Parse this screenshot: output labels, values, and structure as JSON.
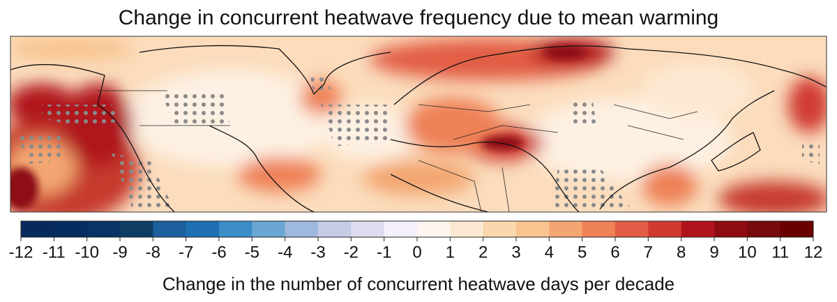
{
  "title": "Change in concurrent heatwave frequency due to mean warming",
  "colorbar": {
    "label": "Change in the number of concurrent heatwave days per decade",
    "ticks": [
      -12,
      -11,
      -10,
      -9,
      -8,
      -7,
      -6,
      -5,
      -4,
      -3,
      -2,
      -1,
      0,
      1,
      2,
      3,
      4,
      5,
      6,
      7,
      8,
      9,
      10,
      11,
      12
    ],
    "colors": [
      "#062a5a",
      "#062d60",
      "#073366",
      "#0d3d63",
      "#1b5f9c",
      "#1f6fb3",
      "#3b8dc6",
      "#6aa6d4",
      "#9fb8de",
      "#c6cbe6",
      "#e0dcef",
      "#f4eff8",
      "#fdf6f0",
      "#fde9d3",
      "#fbd7ae",
      "#f8c48f",
      "#f3a671",
      "#ee8156",
      "#e25d45",
      "#d03a31",
      "#b0131c",
      "#8e0b12",
      "#760a0c",
      "#6b0000"
    ]
  }
}
